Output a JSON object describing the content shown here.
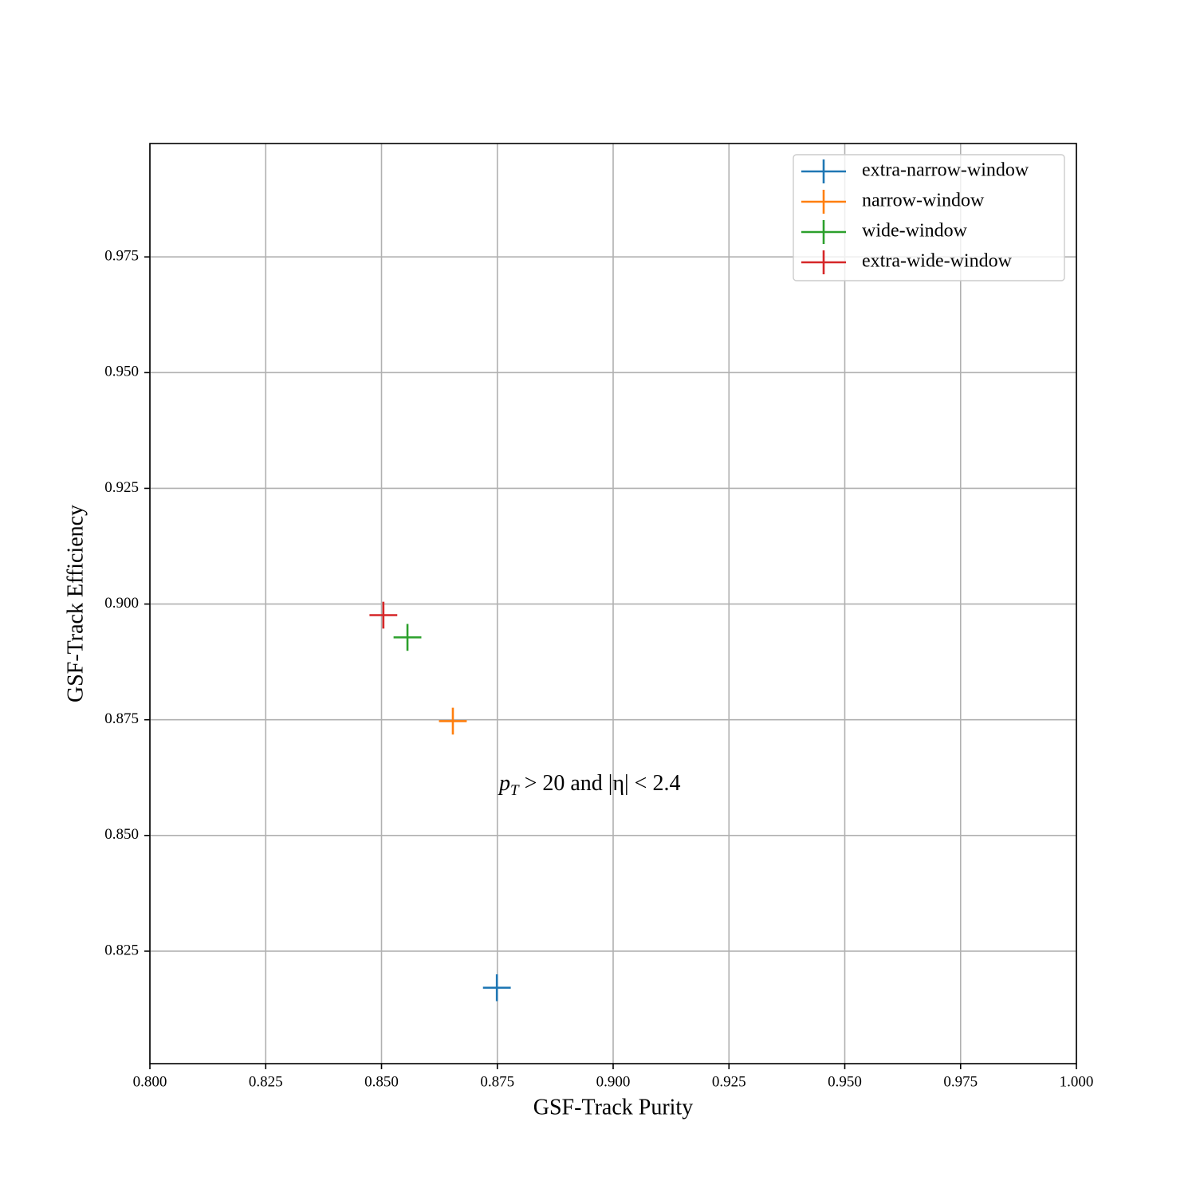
{
  "chart_data": {
    "type": "scatter",
    "xlabel": "GSF-Track Purity",
    "ylabel": "GSF-Track Efficiency",
    "annotation": {
      "base": "p",
      "sub": "T",
      "rest": " > 20 and |η| < 2.4"
    },
    "xlim": [
      0.8,
      1.0
    ],
    "ylim": [
      0.8007,
      0.9995
    ],
    "xticks": [
      {
        "value": 0.8,
        "label": "0.800"
      },
      0.825,
      {
        "value": 0.85,
        "label": "0.850"
      },
      0.875,
      {
        "value": 0.9,
        "label": "0.900"
      },
      0.925,
      {
        "value": 0.95,
        "label": "0.950"
      },
      0.975,
      {
        "value": 1.0,
        "label": "1.000"
      }
    ],
    "yticks": [
      0.825,
      {
        "value": 0.85,
        "label": "0.850"
      },
      0.875,
      {
        "value": 0.9,
        "label": "0.900"
      },
      0.925,
      {
        "value": 0.95,
        "label": "0.950"
      },
      0.975
    ],
    "grid": true,
    "legend": "upper right",
    "series": [
      {
        "name": "extra-narrow-window",
        "color": "#1f77b4",
        "x": [
          0.8749
        ],
        "values": [
          0.8171
        ],
        "xerr": [
          0.003
        ],
        "yerr": [
          0.0029
        ]
      },
      {
        "name": "narrow-window",
        "color": "#ff7f0e",
        "x": [
          0.8654
        ],
        "values": [
          0.8747
        ],
        "xerr": [
          0.003
        ],
        "yerr": [
          0.0029
        ]
      },
      {
        "name": "wide-window",
        "color": "#2ca02c",
        "x": [
          0.8556
        ],
        "values": [
          0.8928
        ],
        "xerr": [
          0.003
        ],
        "yerr": [
          0.0029
        ]
      },
      {
        "name": "extra-wide-window",
        "color": "#d62728",
        "x": [
          0.8504
        ],
        "values": [
          0.8976
        ],
        "xerr": [
          0.003
        ],
        "yerr": [
          0.0029
        ]
      }
    ]
  }
}
